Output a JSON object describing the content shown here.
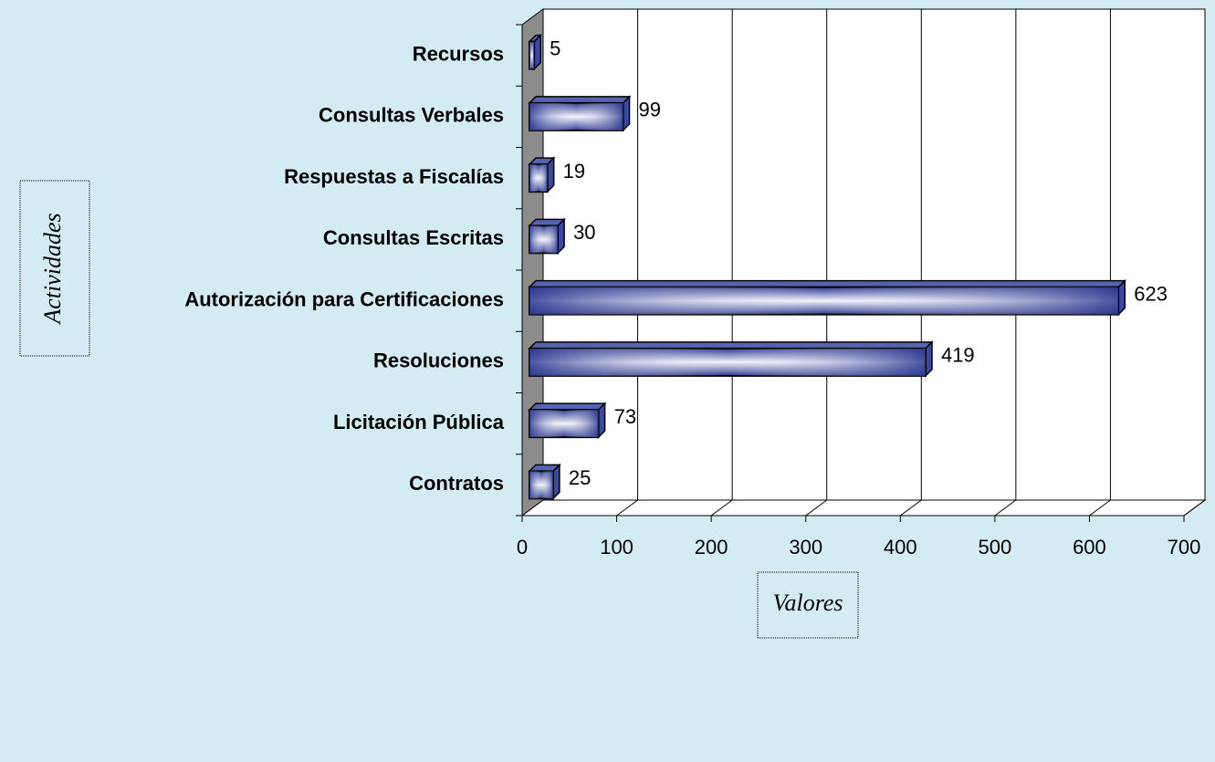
{
  "chart_data": {
    "type": "bar",
    "orientation": "horizontal",
    "categories": [
      "Recursos",
      "Consultas Verbales",
      "Respuestas a Fiscalías",
      "Consultas Escritas",
      "Autorización para Certificaciones",
      "Resoluciones",
      "Licitación Pública",
      "Contratos"
    ],
    "values": [
      5,
      99,
      19,
      30,
      623,
      419,
      73,
      25
    ],
    "color": "#3a4aa0",
    "x_label": "Valores",
    "y_label": "Actividades",
    "xlim": [
      0,
      700
    ],
    "xticks": [
      0,
      100,
      200,
      300,
      400,
      500,
      600,
      700
    ],
    "grid": true
  }
}
